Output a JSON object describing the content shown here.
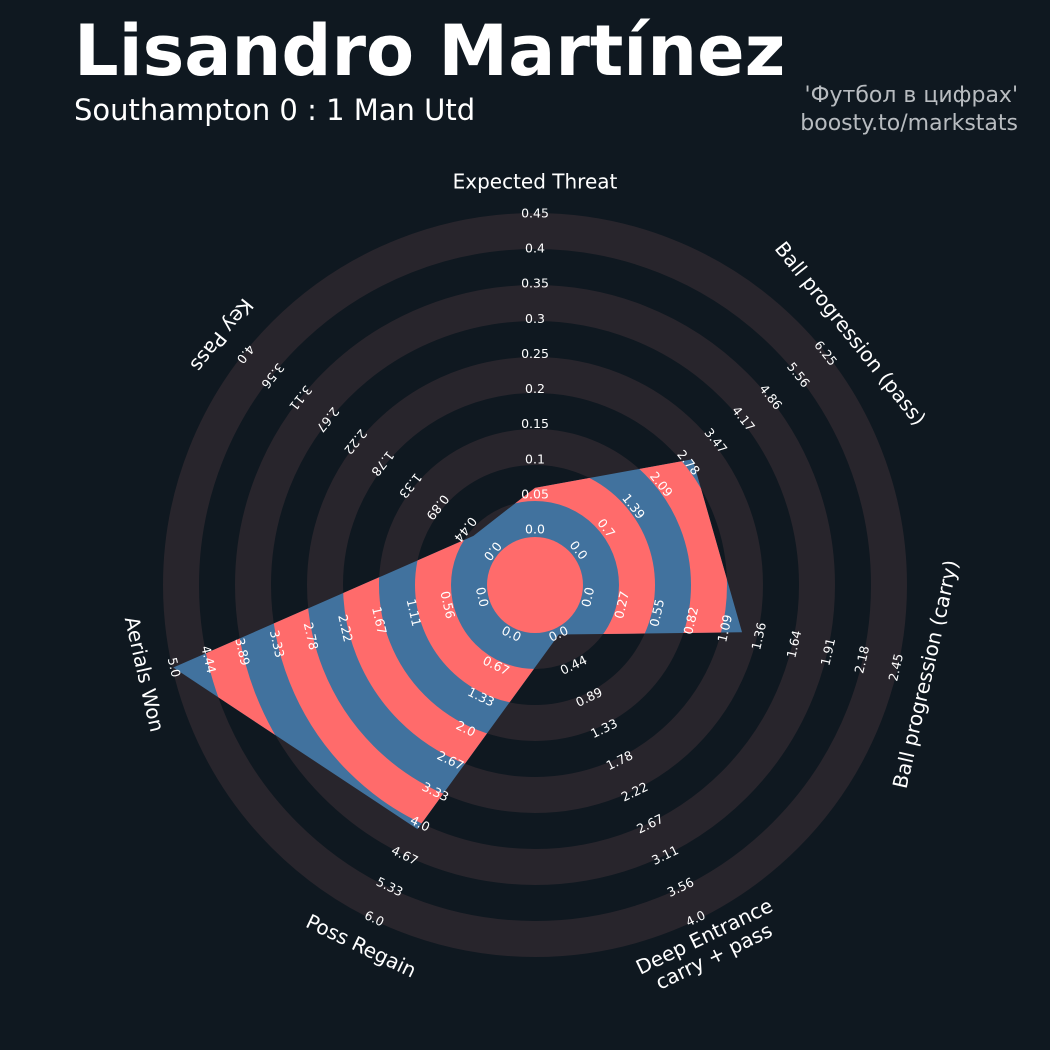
{
  "chart_data": {
    "type": "radar",
    "title": "Lisandro Martínez",
    "subtitle": "Southampton 0 : 1 Man Utd",
    "credits": [
      "'Футбол в цифрах'",
      "boosty.to/markstats"
    ],
    "params": [
      "Expected Threat",
      "Ball progression (pass)",
      "Ball progression (carry)",
      "Deep Entrance\ncarry + pass",
      "Poss Regain",
      "Aerials Won",
      "Key Pass"
    ],
    "values": [
      0.06,
      2.9,
      1.22,
      0.0,
      4.1,
      5.0,
      0.3
    ],
    "ranges": [
      [
        0,
        0.45
      ],
      [
        0,
        6.25
      ],
      [
        0,
        2.45
      ],
      [
        0,
        4
      ],
      [
        0,
        6
      ],
      [
        0,
        5
      ],
      [
        0,
        4
      ]
    ],
    "ticks": [
      [
        {
          "value": 0,
          "label": "0.0"
        },
        0.05,
        0.1,
        0.15,
        0.2,
        0.25,
        0.3,
        0.35,
        0.4,
        0.45
      ],
      [
        {
          "value": 0,
          "label": "0.0"
        },
        0.7,
        1.39,
        2.09,
        2.78,
        3.47,
        4.17,
        4.86,
        5.56,
        6.25
      ],
      [
        {
          "value": 0,
          "label": "0.0"
        },
        0.27,
        0.55,
        0.82,
        1.09,
        1.36,
        1.64,
        1.91,
        2.18,
        2.45
      ],
      [
        {
          "value": 0,
          "label": "0.0"
        },
        0.44,
        0.89,
        1.33,
        1.78,
        2.22,
        2.67,
        3.11,
        3.56,
        {
          "value": 4,
          "label": "4.0"
        }
      ],
      [
        {
          "value": 0,
          "label": "0.0"
        },
        0.67,
        1.33,
        {
          "value": 2,
          "label": "2.0"
        },
        2.67,
        3.33,
        {
          "value": 4,
          "label": "4.0"
        },
        4.67,
        5.33,
        {
          "value": 6,
          "label": "6.0"
        }
      ],
      [
        {
          "value": 0,
          "label": "0.0"
        },
        0.56,
        1.11,
        1.67,
        2.22,
        2.78,
        3.33,
        3.89,
        4.44,
        {
          "value": 5,
          "label": "5.0"
        }
      ],
      [
        {
          "value": 0,
          "label": "0.0"
        },
        0.44,
        0.89,
        1.33,
        1.78,
        2.22,
        2.67,
        3.11,
        3.56,
        {
          "value": 4,
          "label": "4.0"
        }
      ]
    ],
    "colors": {
      "ring": "#28252c",
      "inner": "#41729e",
      "alt": "#ff6b6b"
    }
  }
}
